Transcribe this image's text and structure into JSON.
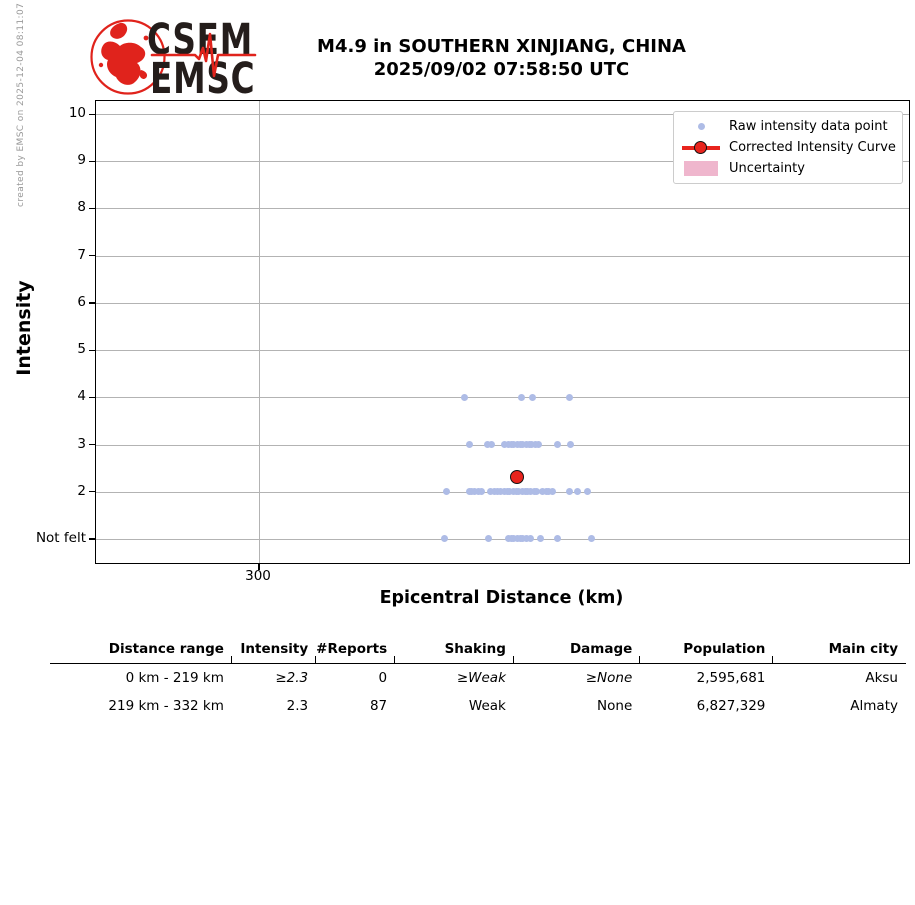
{
  "watermark": "created by EMSC on 2025-12-04 08:11:07 UTC",
  "logo": {
    "word1": "CSEM",
    "word2": "EMSC",
    "red": "#e0231c",
    "text_color": "#241d1b"
  },
  "title": {
    "line1": "M4.9 in SOUTHERN XINJIANG, CHINA",
    "line2": "2025/09/02 07:58:50 UTC"
  },
  "chart_data": {
    "type": "scatter",
    "title": "M4.9 in SOUTHERN XINJIANG, CHINA 2025/09/02 07:58:50 UTC",
    "xlabel": "Epicentral Distance (km)",
    "ylabel": "Intensity",
    "y_tick_labels": [
      "10",
      "9",
      "8",
      "7",
      "6",
      "5",
      "4",
      "3",
      "2",
      "Not felt"
    ],
    "x_tick": {
      "label": "300",
      "frac": 0.2005
    },
    "grid": "on",
    "legend_position": "upper right",
    "colors": {
      "raw_point": "#aebce6",
      "corrected": "#e8241d",
      "uncertainty": "#efb6cd",
      "grid": "#b3b3b3"
    },
    "legend": [
      {
        "marker": "dot",
        "label": "Raw intensity data point"
      },
      {
        "marker": "line-circle",
        "label": "Corrected Intensity Curve"
      },
      {
        "marker": "patch",
        "label": "Uncertainty"
      }
    ],
    "raw_points": [
      {
        "x": 0.453,
        "i": "4"
      },
      {
        "x": 0.523,
        "i": "4"
      },
      {
        "x": 0.537,
        "i": "4"
      },
      {
        "x": 0.583,
        "i": "4"
      },
      {
        "x": 0.459,
        "i": "3"
      },
      {
        "x": 0.482,
        "i": "3"
      },
      {
        "x": 0.487,
        "i": "3"
      },
      {
        "x": 0.503,
        "i": "3"
      },
      {
        "x": 0.507,
        "i": "3"
      },
      {
        "x": 0.511,
        "i": "3"
      },
      {
        "x": 0.514,
        "i": "3"
      },
      {
        "x": 0.518,
        "i": "3"
      },
      {
        "x": 0.522,
        "i": "3"
      },
      {
        "x": 0.525,
        "i": "3"
      },
      {
        "x": 0.529,
        "i": "3"
      },
      {
        "x": 0.533,
        "i": "3"
      },
      {
        "x": 0.536,
        "i": "3"
      },
      {
        "x": 0.54,
        "i": "3"
      },
      {
        "x": 0.544,
        "i": "3"
      },
      {
        "x": 0.568,
        "i": "3"
      },
      {
        "x": 0.584,
        "i": "3"
      },
      {
        "x": 0.431,
        "i": "2"
      },
      {
        "x": 0.459,
        "i": "2"
      },
      {
        "x": 0.462,
        "i": "2"
      },
      {
        "x": 0.466,
        "i": "2"
      },
      {
        "x": 0.47,
        "i": "2"
      },
      {
        "x": 0.474,
        "i": "2"
      },
      {
        "x": 0.485,
        "i": "2"
      },
      {
        "x": 0.49,
        "i": "2"
      },
      {
        "x": 0.494,
        "i": "2"
      },
      {
        "x": 0.498,
        "i": "2"
      },
      {
        "x": 0.502,
        "i": "2"
      },
      {
        "x": 0.506,
        "i": "2"
      },
      {
        "x": 0.509,
        "i": "2"
      },
      {
        "x": 0.513,
        "i": "2"
      },
      {
        "x": 0.517,
        "i": "2"
      },
      {
        "x": 0.52,
        "i": "2"
      },
      {
        "x": 0.524,
        "i": "2"
      },
      {
        "x": 0.528,
        "i": "2"
      },
      {
        "x": 0.531,
        "i": "2"
      },
      {
        "x": 0.535,
        "i": "2"
      },
      {
        "x": 0.539,
        "i": "2"
      },
      {
        "x": 0.542,
        "i": "2"
      },
      {
        "x": 0.549,
        "i": "2"
      },
      {
        "x": 0.554,
        "i": "2"
      },
      {
        "x": 0.557,
        "i": "2"
      },
      {
        "x": 0.561,
        "i": "2"
      },
      {
        "x": 0.582,
        "i": "2"
      },
      {
        "x": 0.592,
        "i": "2"
      },
      {
        "x": 0.605,
        "i": "2"
      },
      {
        "x": 0.429,
        "i": "Not felt"
      },
      {
        "x": 0.483,
        "i": "Not felt"
      },
      {
        "x": 0.507,
        "i": "Not felt"
      },
      {
        "x": 0.511,
        "i": "Not felt"
      },
      {
        "x": 0.514,
        "i": "Not felt"
      },
      {
        "x": 0.518,
        "i": "Not felt"
      },
      {
        "x": 0.522,
        "i": "Not felt"
      },
      {
        "x": 0.525,
        "i": "Not felt"
      },
      {
        "x": 0.529,
        "i": "Not felt"
      },
      {
        "x": 0.534,
        "i": "Not felt"
      },
      {
        "x": 0.547,
        "i": "Not felt"
      },
      {
        "x": 0.568,
        "i": "Not felt"
      },
      {
        "x": 0.609,
        "i": "Not felt"
      }
    ],
    "corrected_points": [
      {
        "x": 0.519,
        "i": "2.3"
      }
    ]
  },
  "table": {
    "headers": [
      "Distance range",
      "Intensity",
      "#Reports",
      "Shaking",
      "Damage",
      "Population",
      "Main city"
    ],
    "rows": [
      [
        "0 km -  219 km",
        "≥2.3",
        "0",
        "≥Weak",
        "≥None",
        "2,595,681",
        "Aksu"
      ],
      [
        "219 km -  332 km",
        "2.3",
        "87",
        "Weak",
        "None",
        "6,827,329",
        "Almaty"
      ]
    ]
  }
}
